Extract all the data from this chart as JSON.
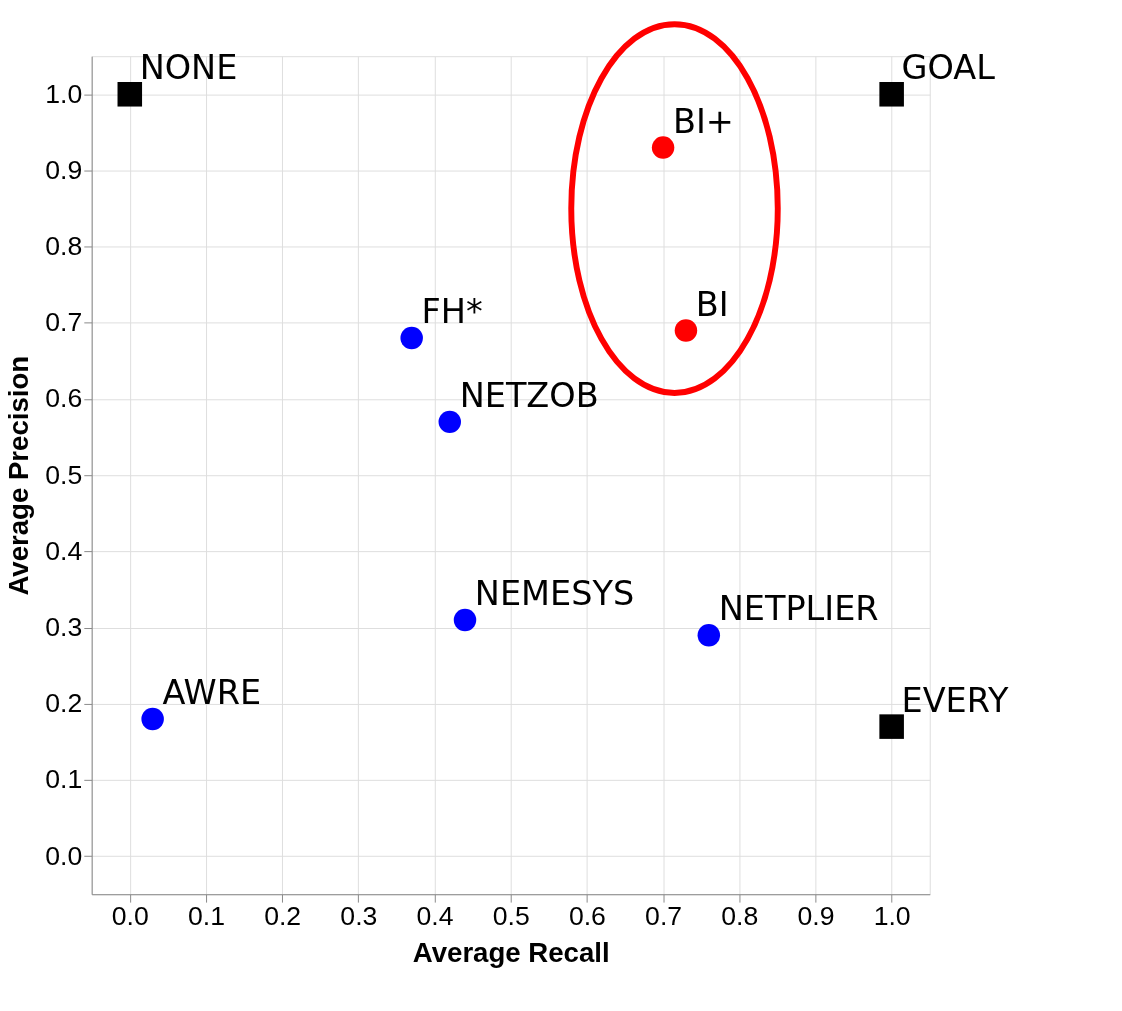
{
  "chart_data": {
    "type": "scatter",
    "xlabel": "Average Recall",
    "ylabel": "Average Precision",
    "xlim": [
      -0.05,
      1.05
    ],
    "ylim": [
      -0.05,
      1.05
    ],
    "xticks": [
      {
        "value": 0,
        "label": "0.0"
      },
      {
        "value": 0.1,
        "label": "0.1"
      },
      {
        "value": 0.2,
        "label": "0.2"
      },
      {
        "value": 0.3,
        "label": "0.3"
      },
      {
        "value": 0.4,
        "label": "0.4"
      },
      {
        "value": 0.5,
        "label": "0.5"
      },
      {
        "value": 0.6,
        "label": "0.6"
      },
      {
        "value": 0.7,
        "label": "0.7"
      },
      {
        "value": 0.8,
        "label": "0.8"
      },
      {
        "value": 0.9,
        "label": "0.9"
      },
      {
        "value": 1,
        "label": "1.0"
      }
    ],
    "yticks": [
      {
        "value": 0,
        "label": "0.0"
      },
      {
        "value": 0.1,
        "label": "0.1"
      },
      {
        "value": 0.2,
        "label": "0.2"
      },
      {
        "value": 0.3,
        "label": "0.3"
      },
      {
        "value": 0.4,
        "label": "0.4"
      },
      {
        "value": 0.5,
        "label": "0.5"
      },
      {
        "value": 0.6,
        "label": "0.6"
      },
      {
        "value": 0.7,
        "label": "0.7"
      },
      {
        "value": 0.8,
        "label": "0.8"
      },
      {
        "value": 0.9,
        "label": "0.9"
      },
      {
        "value": 1,
        "label": "1.0"
      }
    ],
    "grid": true,
    "series": [
      {
        "color": "#000000",
        "marker": "square",
        "x": [
          0,
          1,
          1
        ],
        "values": [
          1,
          1,
          0.17
        ]
      },
      {
        "color": "#ff0000",
        "marker": "circle",
        "x": [
          0.7,
          0.73
        ],
        "values": [
          0.93,
          0.69
        ]
      },
      {
        "color": "#0000ff",
        "marker": "circle",
        "x": [
          0.37,
          0.42,
          0.44,
          0.76,
          0.03
        ],
        "values": [
          0.68,
          0.57,
          0.31,
          0.29,
          0.18
        ]
      }
    ],
    "annotations": [
      {
        "text": "NONE",
        "x": 0,
        "y": 1
      },
      {
        "text": "GOAL",
        "x": 1,
        "y": 1
      },
      {
        "text": "EVERY",
        "x": 1,
        "y": 0.17
      },
      {
        "text": "BI+",
        "x": 0.7,
        "y": 0.93
      },
      {
        "text": "BI",
        "x": 0.73,
        "y": 0.69
      },
      {
        "text": "FH*",
        "x": 0.37,
        "y": 0.68
      },
      {
        "text": "NETZOB",
        "x": 0.42,
        "y": 0.57
      },
      {
        "text": "NEMESYS",
        "x": 0.44,
        "y": 0.31
      },
      {
        "text": "NETPLIER",
        "x": 0.76,
        "y": 0.29
      },
      {
        "text": "AWRE",
        "x": 0.03,
        "y": 0.18
      }
    ]
  }
}
